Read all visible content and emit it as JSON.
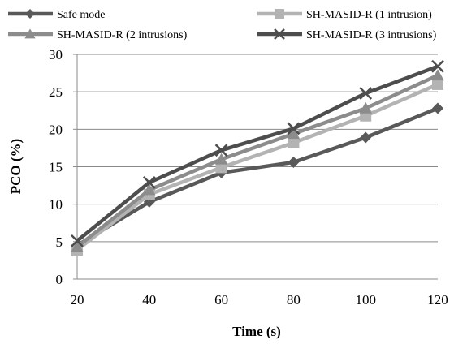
{
  "chart_data": {
    "type": "line",
    "title": "",
    "xlabel": "Time (s)",
    "ylabel": "PCO (%)",
    "x": [
      20,
      40,
      60,
      80,
      100,
      120
    ],
    "xlim": [
      20,
      120
    ],
    "ylim": [
      0,
      30
    ],
    "yticks": [
      0,
      5,
      10,
      15,
      20,
      25,
      30
    ],
    "grid": "horizontal",
    "legend_position": "top",
    "series": [
      {
        "name": "Safe mode",
        "marker": "diamond",
        "color": "#595959",
        "values": [
          4.5,
          10.3,
          14.2,
          15.6,
          18.9,
          22.8
        ]
      },
      {
        "name": "SH-MASID-R (1 intrusion)",
        "marker": "square",
        "color": "#b3b3b3",
        "values": [
          3.9,
          11.3,
          14.9,
          18.2,
          21.8,
          26.0
        ]
      },
      {
        "name": "SH-MASID-R (2 intrusions)",
        "marker": "triangle",
        "color": "#8c8c8c",
        "values": [
          4.3,
          11.9,
          16.0,
          19.4,
          22.8,
          27.2
        ]
      },
      {
        "name": "SH-MASID-R (3 intrusions)",
        "marker": "x",
        "color": "#4d4d4d",
        "values": [
          5.1,
          12.9,
          17.2,
          20.1,
          24.8,
          28.4
        ]
      }
    ]
  }
}
